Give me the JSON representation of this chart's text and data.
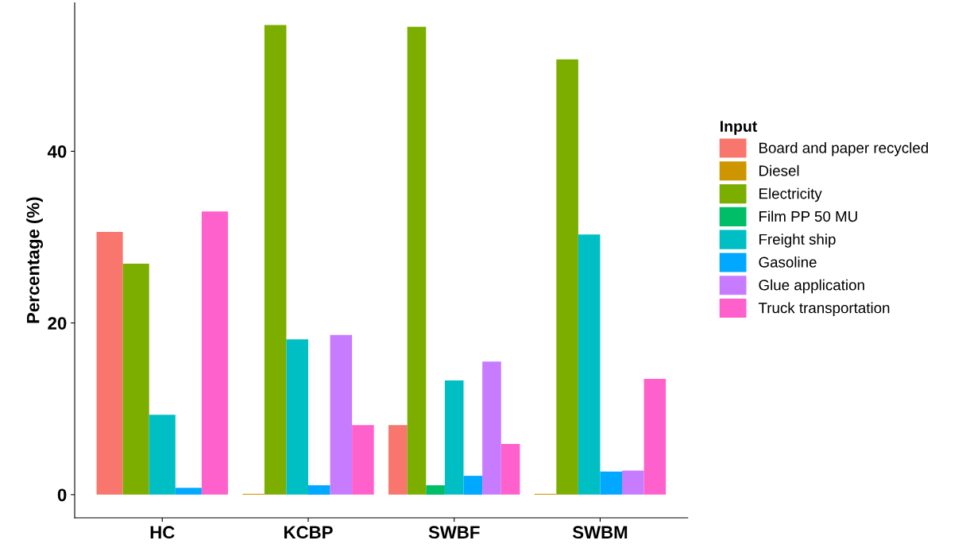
{
  "chart_data": {
    "type": "bar",
    "ylabel": "Percentage (%)",
    "legend_title": "Input",
    "legend": "right",
    "categories": [
      "HC",
      "KCBP",
      "SWBF",
      "SWBM"
    ],
    "ylim": [
      -2.7,
      57.3
    ],
    "yticks": [
      0,
      20,
      40
    ],
    "grid": false,
    "series": [
      {
        "name": "Board and paper recycled",
        "color": "#f8766d",
        "values": [
          30.6,
          null,
          8.1,
          null
        ]
      },
      {
        "name": "Diesel",
        "color": "#cd9600",
        "values": [
          null,
          0.1,
          null,
          0.1
        ]
      },
      {
        "name": "Electricity",
        "color": "#7cae00",
        "values": [
          26.9,
          54.7,
          54.5,
          50.7
        ]
      },
      {
        "name": "Film PP 50 MU",
        "color": "#00be67",
        "values": [
          null,
          null,
          1.1,
          null
        ]
      },
      {
        "name": "Freight ship",
        "color": "#00bfc4",
        "values": [
          9.3,
          18.1,
          13.3,
          30.3
        ]
      },
      {
        "name": "Gasoline",
        "color": "#00a9ff",
        "values": [
          0.8,
          1.1,
          2.2,
          2.7
        ]
      },
      {
        "name": "Glue application",
        "color": "#c77cff",
        "values": [
          null,
          18.6,
          15.5,
          2.8
        ]
      },
      {
        "name": "Truck transportation",
        "color": "#ff61cc",
        "values": [
          33.0,
          8.1,
          5.9,
          13.5
        ]
      }
    ]
  }
}
